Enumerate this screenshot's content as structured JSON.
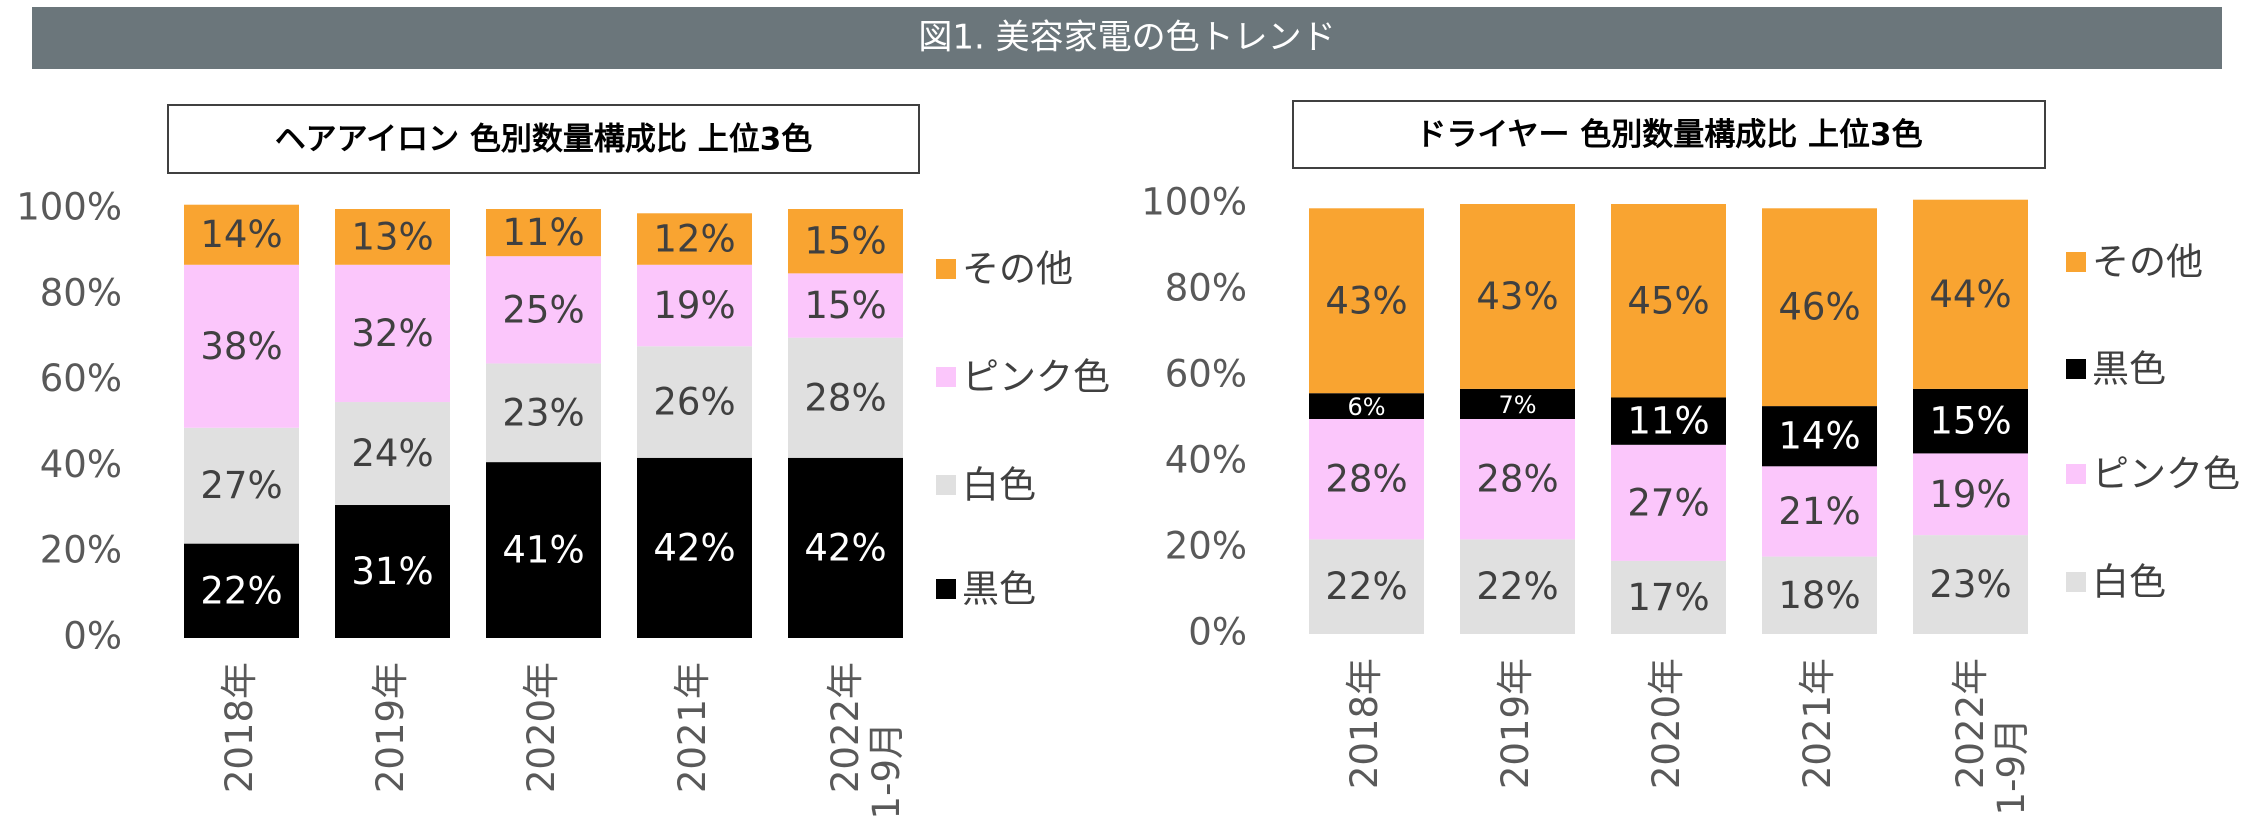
{
  "header": {
    "title": "図1. 美容家電の色トレンド"
  },
  "chart_data": [
    {
      "type": "stacked-bar",
      "title": "ヘアアイロン 色別数量構成比 上位3色",
      "categories": [
        "2018年",
        "2019年",
        "2020年",
        "2021年",
        "2022年\n1-9月"
      ],
      "series": [
        {
          "name": "黒色",
          "color": "#000000",
          "values": [
            22,
            31,
            41,
            42,
            42
          ],
          "value_labels": [
            "22%",
            "31%",
            "41%",
            "42%",
            "42%"
          ]
        },
        {
          "name": "白色",
          "color": "#e0e0e0",
          "values": [
            27,
            24,
            23,
            26,
            28
          ],
          "value_labels": [
            "27%",
            "24%",
            "23%",
            "26%",
            "28%"
          ]
        },
        {
          "name": "ピンク色",
          "color": "#fbc6fb",
          "values": [
            38,
            32,
            25,
            19,
            15
          ],
          "value_labels": [
            "38%",
            "32%",
            "25%",
            "19%",
            "15%"
          ]
        },
        {
          "name": "その他",
          "color": "#f9a431",
          "values": [
            14,
            13,
            11,
            12,
            15
          ],
          "value_labels": [
            "14%",
            "13%",
            "11%",
            "12%",
            "15%"
          ]
        }
      ],
      "ylim": [
        0,
        100
      ],
      "yticks": [
        {
          "value": 0,
          "label": "0%"
        },
        {
          "value": 20,
          "label": "20%"
        },
        {
          "value": 40,
          "label": "40%"
        },
        {
          "value": 60,
          "label": "60%"
        },
        {
          "value": 80,
          "label": "80%"
        },
        {
          "value": 100,
          "label": "100%"
        }
      ],
      "legend": "right"
    },
    {
      "type": "stacked-bar",
      "title": "ドライヤー 色別数量構成比 上位3色",
      "categories": [
        "2018年",
        "2019年",
        "2020年",
        "2021年",
        "2022年\n1-9月"
      ],
      "series": [
        {
          "name": "白色",
          "color": "#e0e0e0",
          "values": [
            22,
            22,
            17,
            18,
            23
          ],
          "value_labels": [
            "22%",
            "22%",
            "17%",
            "18%",
            "23%"
          ]
        },
        {
          "name": "ピンク色",
          "color": "#fbc6fb",
          "values": [
            28,
            28,
            27,
            21,
            19
          ],
          "value_labels": [
            "28%",
            "28%",
            "27%",
            "21%",
            "19%"
          ]
        },
        {
          "name": "黒色",
          "color": "#000000",
          "values": [
            6,
            7,
            11,
            14,
            15
          ],
          "value_labels": [
            "6%",
            "7%",
            "11%",
            "14%",
            "15%"
          ]
        },
        {
          "name": "その他",
          "color": "#f9a431",
          "values": [
            43,
            43,
            45,
            46,
            44
          ],
          "value_labels": [
            "43%",
            "43%",
            "45%",
            "46%",
            "44%"
          ]
        }
      ],
      "ylim": [
        0,
        100
      ],
      "yticks": [
        {
          "value": 0,
          "label": "0%"
        },
        {
          "value": 20,
          "label": "20%"
        },
        {
          "value": 40,
          "label": "40%"
        },
        {
          "value": 60,
          "label": "60%"
        },
        {
          "value": 80,
          "label": "80%"
        },
        {
          "value": 100,
          "label": "100%"
        }
      ],
      "legend": "right"
    }
  ]
}
